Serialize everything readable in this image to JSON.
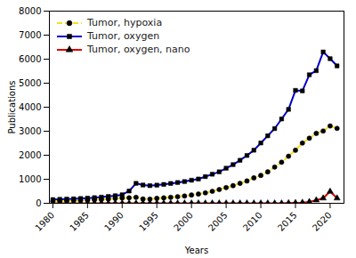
{
  "chart_data": {
    "type": "line",
    "x": [
      1980,
      1981,
      1982,
      1983,
      1984,
      1985,
      1986,
      1987,
      1988,
      1989,
      1990,
      1991,
      1992,
      1993,
      1994,
      1995,
      1996,
      1997,
      1998,
      1999,
      2000,
      2001,
      2002,
      2003,
      2004,
      2005,
      2006,
      2007,
      2008,
      2009,
      2010,
      2011,
      2012,
      2013,
      2014,
      2015,
      2016,
      2017,
      2018,
      2019,
      2020,
      2021
    ],
    "series": [
      {
        "name": "Tumor, hypoxia",
        "color": "#f5e020",
        "marker": "circle",
        "line_style": "dashed",
        "values": [
          80,
          90,
          100,
          110,
          120,
          130,
          145,
          160,
          180,
          200,
          220,
          230,
          250,
          180,
          175,
          205,
          225,
          250,
          275,
          305,
          345,
          385,
          435,
          500,
          575,
          655,
          735,
          830,
          930,
          1060,
          1160,
          1310,
          1510,
          1710,
          1960,
          2210,
          2510,
          2710,
          2910,
          3010,
          3220,
          3120
        ]
      },
      {
        "name": "Tumor, oxygen",
        "color": "#0000cc",
        "marker": "square",
        "line_style": "solid",
        "values": [
          155,
          165,
          175,
          185,
          200,
          215,
          235,
          255,
          285,
          315,
          355,
          510,
          830,
          760,
          735,
          755,
          785,
          825,
          865,
          905,
          960,
          1010,
          1110,
          1210,
          1310,
          1460,
          1610,
          1790,
          1990,
          2210,
          2510,
          2810,
          3110,
          3510,
          3910,
          4700,
          4680,
          5350,
          5520,
          6300,
          6020,
          5720
        ]
      },
      {
        "name": "Tumor, oxygen, nano",
        "color": "#dd0000",
        "marker": "triangle",
        "line_style": "solid",
        "values": [
          0,
          0,
          0,
          0,
          0,
          0,
          0,
          0,
          0,
          0,
          0,
          0,
          0,
          0,
          0,
          0,
          0,
          0,
          0,
          0,
          0,
          0,
          0,
          0,
          0,
          0,
          0,
          0,
          0,
          0,
          0,
          0,
          0,
          0,
          10,
          20,
          30,
          60,
          130,
          210,
          490,
          210
        ]
      }
    ],
    "xlabel": "Years",
    "ylabel": "Publications",
    "xlim": [
      1979.5,
      2022
    ],
    "xticks": [
      1980,
      1985,
      1990,
      1995,
      2000,
      2005,
      2010,
      2015,
      2020
    ],
    "ylim": [
      0,
      8000
    ],
    "yticks": [
      0,
      1000,
      2000,
      3000,
      4000,
      5000,
      6000,
      7000,
      8000
    ],
    "legend": "upper left",
    "grid": false
  }
}
